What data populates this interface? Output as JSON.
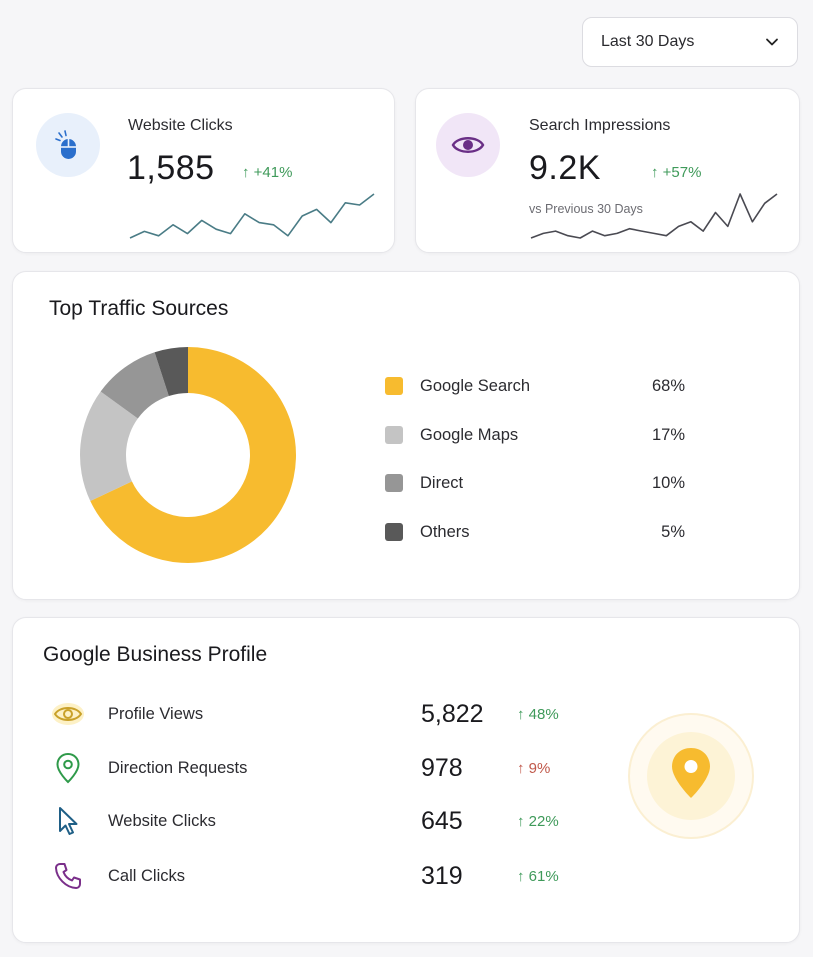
{
  "colors": {
    "up_green": "#3f9a5a",
    "up_red": "#c0584a",
    "yellow": "#f7bb2f",
    "light_gray": "#c4c4c4",
    "mid_gray": "#969696",
    "dark_gray": "#595959"
  },
  "period_select": {
    "label": "Last 30 Days",
    "icon": "chevron-down-icon"
  },
  "stats": {
    "clicks": {
      "icon": "mouse-icon",
      "title": "Website Clicks",
      "value": "1,585",
      "change": "↑ +41%",
      "sparkline": [
        2,
        5,
        3,
        8,
        4,
        10,
        6,
        4,
        13,
        9,
        8,
        3,
        12,
        15,
        9,
        18,
        17,
        22
      ]
    },
    "impressions": {
      "icon": "eye-icon",
      "title": "Search Impressions",
      "value": "9.2K",
      "change": "↑ +57%",
      "sub": "vs Previous 30 Days",
      "sparkline": [
        3,
        5,
        6,
        4,
        3,
        6,
        4,
        5,
        7,
        6,
        5,
        4,
        8,
        10,
        6,
        14,
        8,
        22,
        10,
        18,
        22
      ]
    }
  },
  "traffic": {
    "title": "Top Traffic Sources",
    "sources": [
      {
        "label": "Google Search",
        "pct": "68%",
        "color": "#f7bb2f"
      },
      {
        "label": "Google Maps",
        "pct": "17%",
        "color": "#c4c4c4"
      },
      {
        "label": "Direct",
        "pct": "10%",
        "color": "#969696"
      },
      {
        "label": "Others",
        "pct": "5%",
        "color": "#595959"
      }
    ]
  },
  "business": {
    "title": "Google Business Profile",
    "rows": [
      {
        "icon": "eye-icon",
        "label": "Profile Views",
        "value": "5,822",
        "change": "↑ 48%",
        "trend": "green"
      },
      {
        "icon": "location-pin-icon",
        "label": "Direction Requests",
        "value": "978",
        "change": "↑ 9%",
        "trend": "red"
      },
      {
        "icon": "cursor-icon",
        "label": "Website Clicks",
        "value": "645",
        "change": "↑ 22%",
        "trend": "green"
      },
      {
        "icon": "phone-icon",
        "label": "Call Clicks",
        "value": "319",
        "change": "↑ 61%",
        "trend": "green"
      }
    ],
    "map_marker_icon": "map-pin-icon"
  }
}
